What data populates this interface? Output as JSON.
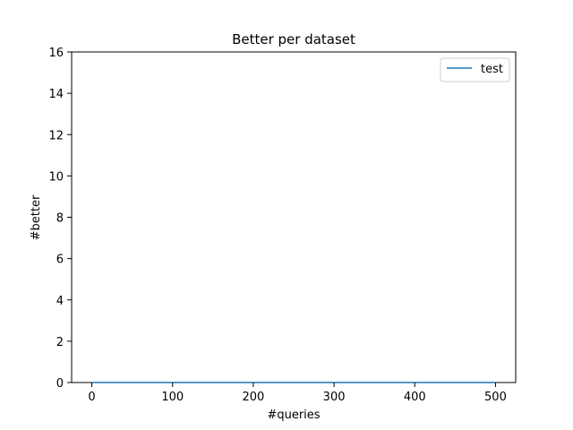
{
  "chart_data": {
    "type": "line",
    "title": "Better per dataset",
    "xlabel": "#queries",
    "ylabel": "#better",
    "xlim": [
      -25,
      525
    ],
    "ylim": [
      0,
      16
    ],
    "xticks": [
      0,
      100,
      200,
      300,
      400,
      500
    ],
    "yticks": [
      0,
      2,
      4,
      6,
      8,
      10,
      12,
      14,
      16
    ],
    "grid": false,
    "legend_position": "top-right",
    "series": [
      {
        "name": "test",
        "color": "#1f77b4",
        "x": [
          0,
          50,
          100,
          150,
          200,
          250,
          300,
          350,
          400,
          450,
          500
        ],
        "y": [
          0,
          0,
          0,
          0,
          0,
          0,
          0,
          0,
          0,
          0,
          0
        ]
      }
    ]
  }
}
